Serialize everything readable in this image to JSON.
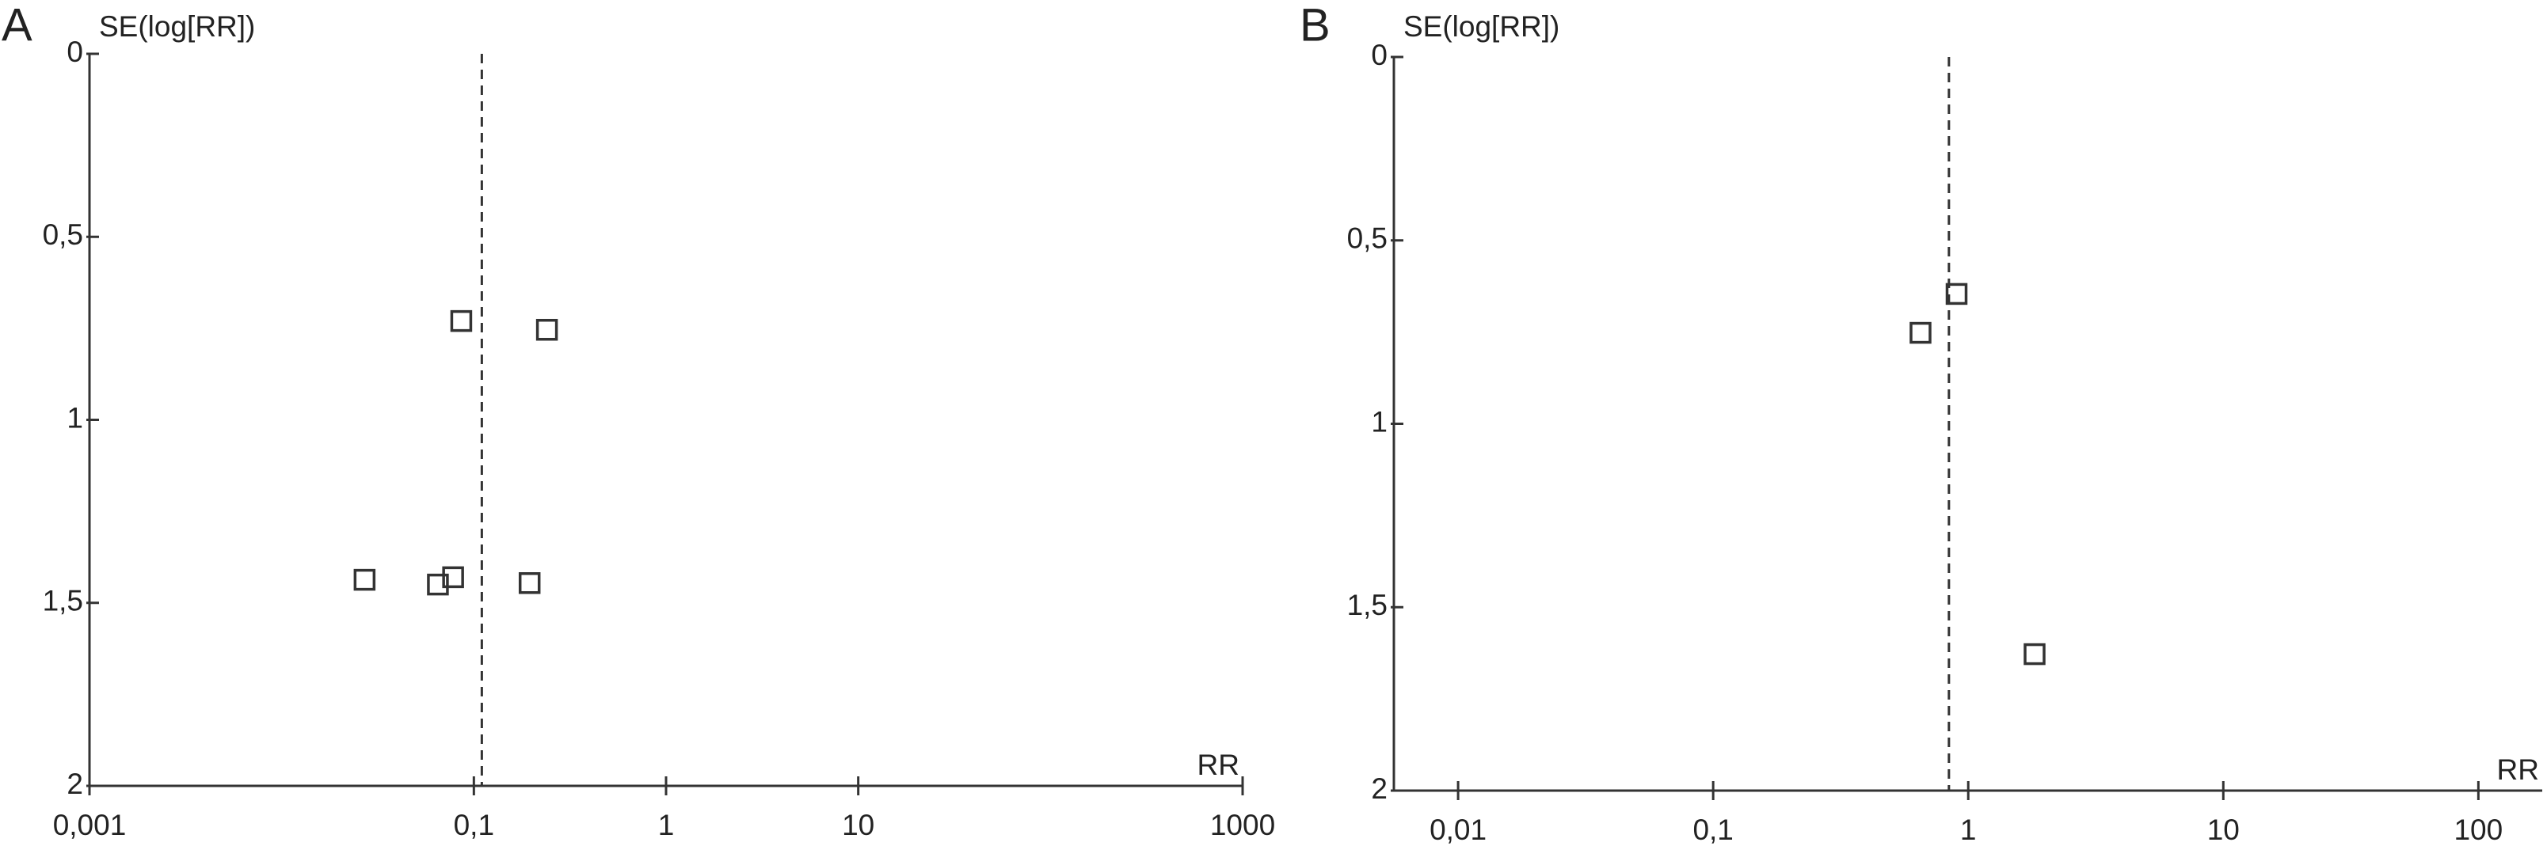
{
  "chart_data": [
    {
      "type": "scatter",
      "panel_label": "A",
      "y_label": "SE(log[RR])",
      "x_label": "RR",
      "xscale": "log",
      "yinverted": true,
      "color": "#333333",
      "marker": "square",
      "xlim": [
        0.001,
        1000
      ],
      "ylim": [
        0,
        2
      ],
      "xticks": [
        {
          "value": 0.001,
          "label": "0,001"
        },
        {
          "value": 0.1,
          "label": "0,1"
        },
        1,
        10,
        1000
      ],
      "yticks": [
        0,
        {
          "value": 0.5,
          "label": "0,5"
        },
        1,
        {
          "value": 1.5,
          "label": "1,5"
        },
        2
      ],
      "reference_x": 0.11,
      "x": [
        0.086,
        0.24,
        0.027,
        0.065,
        0.078,
        0.195
      ],
      "values": [
        0.73,
        0.754,
        1.437,
        1.45,
        1.43,
        1.446
      ]
    },
    {
      "type": "scatter",
      "panel_label": "B",
      "y_label": "SE(log[RR])",
      "x_label": "RR",
      "xscale": "log",
      "yinverted": true,
      "color": "#333333",
      "marker": "square",
      "xlim": [
        0.0056,
        178
      ],
      "ylim": [
        0,
        2
      ],
      "xticks": [
        {
          "value": 0.01,
          "label": "0,01"
        },
        {
          "value": 0.1,
          "label": "0,1"
        },
        1,
        10,
        100
      ],
      "yticks": [
        0,
        {
          "value": 0.5,
          "label": "0,5"
        },
        1,
        {
          "value": 1.5,
          "label": "1,5"
        },
        2
      ],
      "reference_x": 0.84,
      "x": [
        0.9,
        0.65,
        1.82
      ],
      "values": [
        0.646,
        0.752,
        1.628
      ]
    }
  ]
}
